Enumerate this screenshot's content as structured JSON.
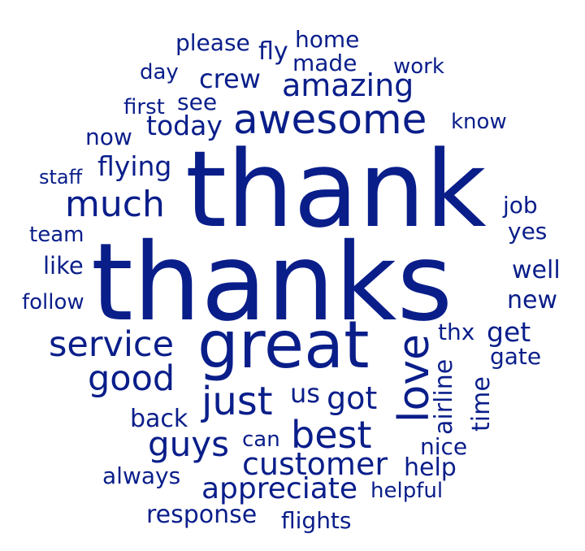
{
  "word_cloud": {
    "color": "#0a1e8a",
    "words": [
      {
        "text": "thank"
      },
      {
        "text": "thanks"
      },
      {
        "text": "great"
      },
      {
        "text": "awesome"
      },
      {
        "text": "love"
      },
      {
        "text": "amazing"
      },
      {
        "text": "much"
      },
      {
        "text": "just"
      },
      {
        "text": "best"
      },
      {
        "text": "service"
      },
      {
        "text": "good"
      },
      {
        "text": "guys"
      },
      {
        "text": "customer"
      },
      {
        "text": "appreciate"
      },
      {
        "text": "got"
      },
      {
        "text": "crew"
      },
      {
        "text": "today"
      },
      {
        "text": "flying"
      },
      {
        "text": "airline"
      },
      {
        "text": "time"
      },
      {
        "text": "get"
      },
      {
        "text": "please"
      },
      {
        "text": "home"
      },
      {
        "text": "made"
      },
      {
        "text": "fly"
      },
      {
        "text": "work"
      },
      {
        "text": "day"
      },
      {
        "text": "see"
      },
      {
        "text": "first"
      },
      {
        "text": "know"
      },
      {
        "text": "now"
      },
      {
        "text": "staff"
      },
      {
        "text": "job"
      },
      {
        "text": "yes"
      },
      {
        "text": "team"
      },
      {
        "text": "like"
      },
      {
        "text": "well"
      },
      {
        "text": "follow"
      },
      {
        "text": "new"
      },
      {
        "text": "thx"
      },
      {
        "text": "gate"
      },
      {
        "text": "us"
      },
      {
        "text": "back"
      },
      {
        "text": "can"
      },
      {
        "text": "nice"
      },
      {
        "text": "help"
      },
      {
        "text": "always"
      },
      {
        "text": "helpful"
      },
      {
        "text": "response"
      },
      {
        "text": "flights"
      }
    ]
  }
}
